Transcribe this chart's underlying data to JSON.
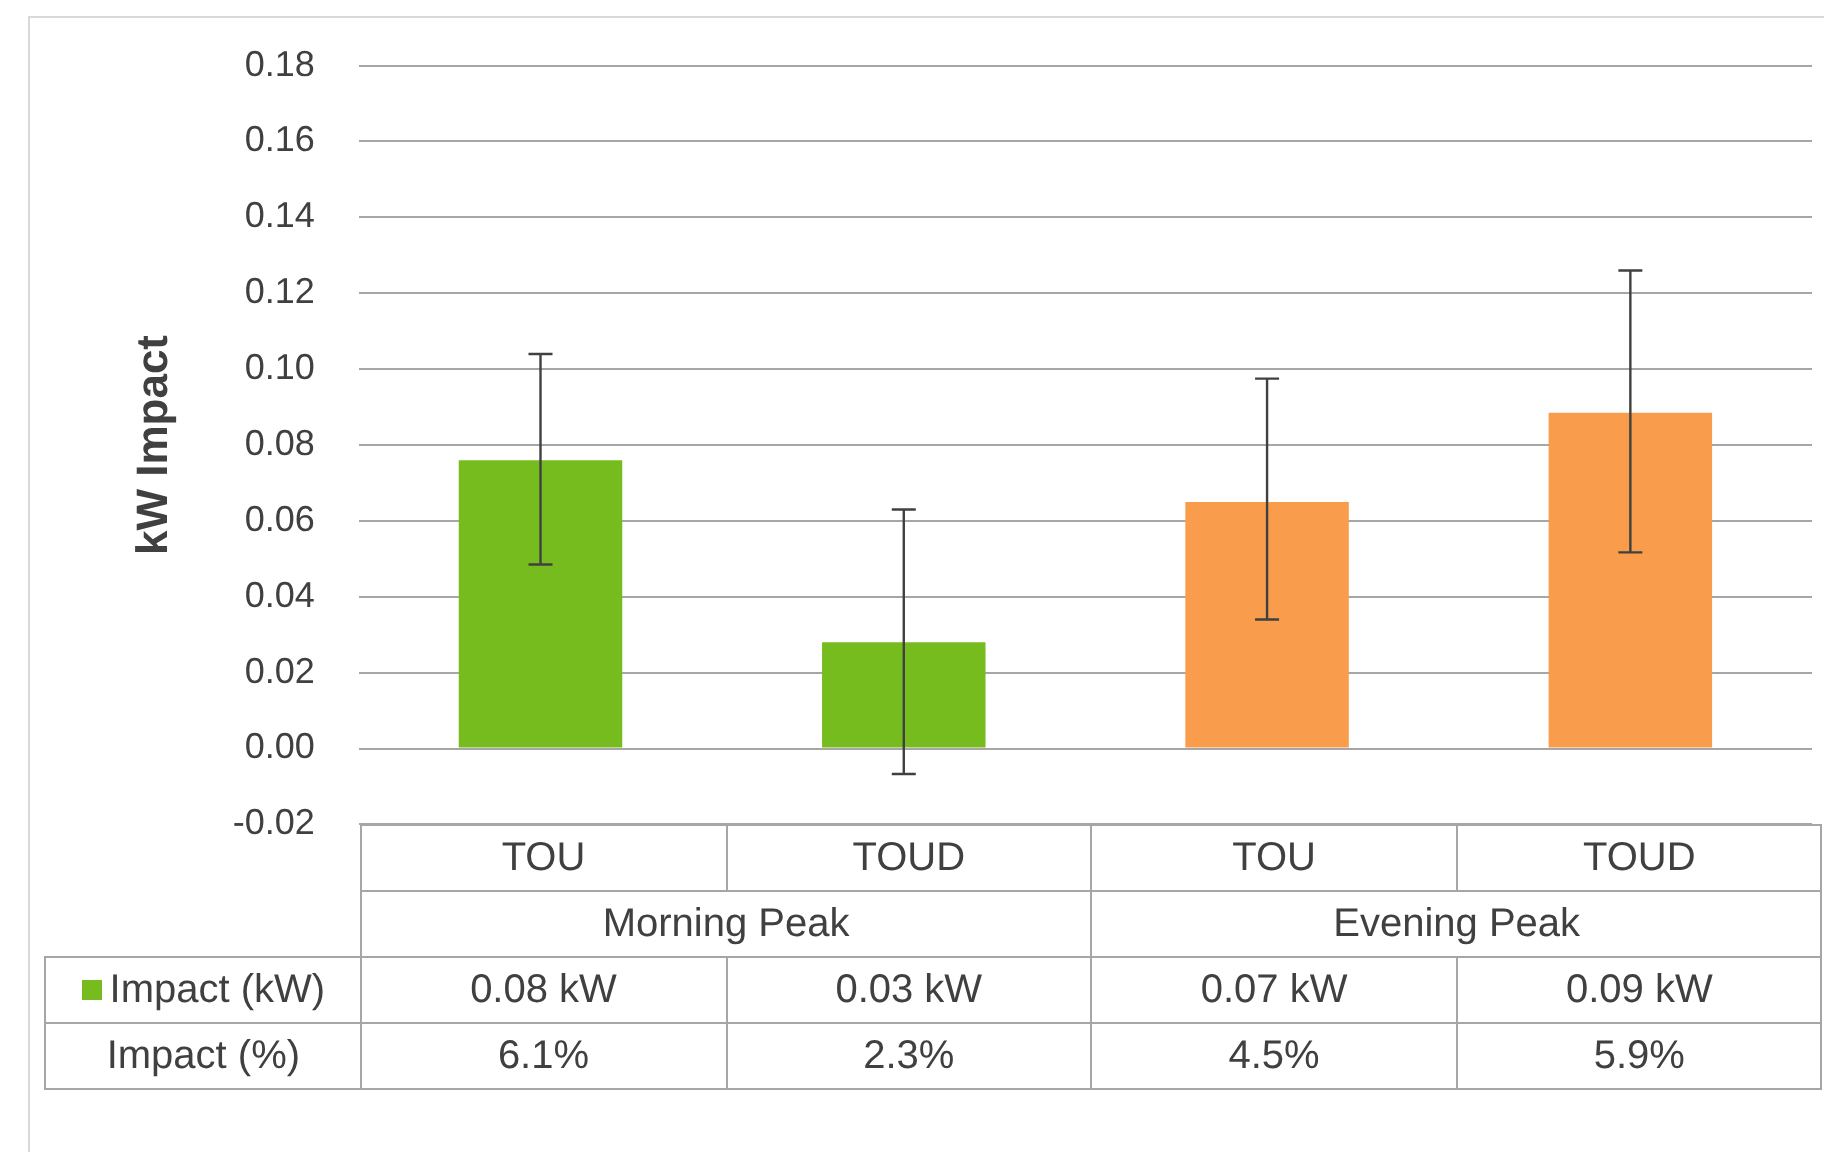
{
  "chart_data": {
    "type": "bar",
    "ylabel": "kW Impact",
    "categories": [
      "TOU",
      "TOUD",
      "TOU",
      "TOUD"
    ],
    "series": [
      {
        "name": "Impact (kW)",
        "colors": [
          "#77bc1f",
          "#77bc1f",
          "#f99d4c",
          "#f99d4c"
        ],
        "values": [
          0.076,
          0.028,
          0.065,
          0.0885
        ],
        "errors": [
          [
            0.0485,
            0.104
          ],
          [
            -0.0067,
            0.063
          ],
          [
            0.034,
            0.0975
          ],
          [
            0.0517,
            0.126
          ]
        ],
        "value_labels": [
          "0.08 kW",
          "0.03 kW",
          "0.07 kW",
          "0.09 kW"
        ]
      }
    ],
    "ylim": [
      -0.02,
      0.18
    ],
    "yticks": [
      {
        "value": -0.02,
        "label": "-0.02"
      },
      {
        "value": 0,
        "label": "0.00"
      },
      {
        "value": 0.02,
        "label": "0.02"
      },
      {
        "value": 0.04,
        "label": "0.04"
      },
      {
        "value": 0.06,
        "label": "0.06"
      },
      {
        "value": 0.08,
        "label": "0.08"
      },
      {
        "value": 0.1,
        "label": "0.10"
      },
      {
        "value": 0.12,
        "label": "0.12"
      },
      {
        "value": 0.14,
        "label": "0.14"
      },
      {
        "value": 0.16,
        "label": "0.16"
      },
      {
        "value": 0.18,
        "label": "0.18"
      }
    ],
    "grid": "y",
    "annotations": [
      "Morning Peak",
      "Evening Peak",
      "Impact (%)",
      "6.1%",
      "2.3%",
      "4.5%",
      "5.9%"
    ]
  }
}
